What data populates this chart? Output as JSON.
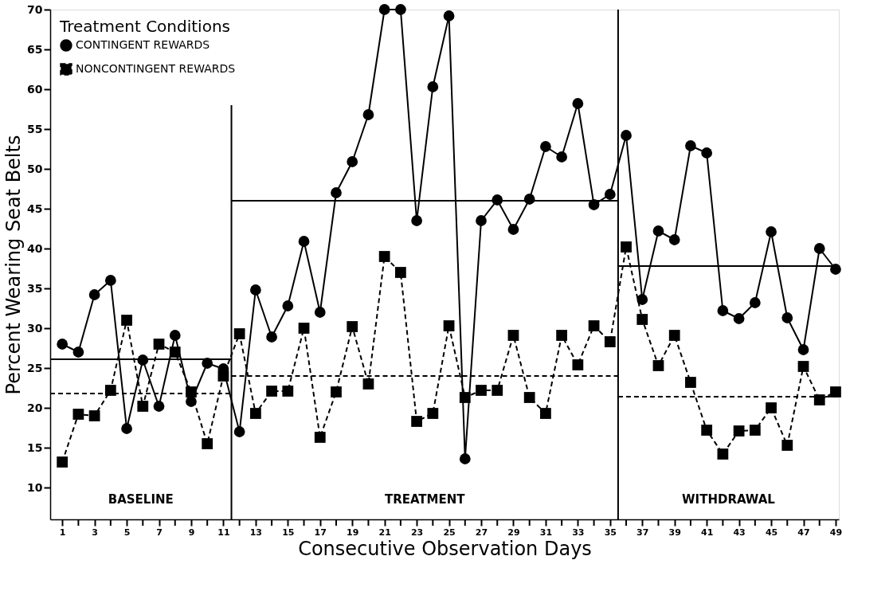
{
  "chart_data": {
    "type": "line",
    "xlabel": "Consecutive Observation Days",
    "ylabel": "Percent Wearing Seat Belts",
    "legend_title": "Treatment Conditions",
    "x": [
      1,
      2,
      3,
      4,
      5,
      6,
      7,
      8,
      9,
      10,
      11,
      12,
      13,
      14,
      15,
      16,
      17,
      18,
      19,
      20,
      21,
      22,
      23,
      24,
      25,
      26,
      27,
      28,
      29,
      30,
      31,
      32,
      33,
      34,
      35,
      36,
      37,
      38,
      39,
      40,
      41,
      42,
      43,
      44,
      45,
      46,
      47,
      48,
      49
    ],
    "series": [
      {
        "name": "CONTINGENT REWARDS",
        "color": "#000000",
        "marker": "circle",
        "line_style": "solid",
        "values": [
          28,
          27,
          34.2,
          36,
          17.4,
          26,
          20.2,
          29.1,
          20.8,
          25.6,
          24.9,
          17,
          34.8,
          28.9,
          32.8,
          40.9,
          32,
          47,
          50.9,
          56.8,
          70,
          70,
          43.5,
          60.3,
          69.2,
          13.6,
          43.5,
          46.1,
          42.4,
          46.2,
          52.8,
          51.5,
          58.2,
          45.5,
          46.8,
          54.2,
          33.6,
          42.2,
          41.1,
          52.9,
          52,
          32.2,
          31.2,
          33.2,
          42.1,
          31.3,
          27.3,
          40,
          37.4
        ]
      },
      {
        "name": "NONCONTINGENT REWARDS",
        "color": "#000000",
        "marker": "square",
        "line_style": "dashed",
        "values": [
          13.2,
          19.2,
          19,
          22.2,
          31,
          20.2,
          28,
          27,
          22,
          15.5,
          24,
          29.3,
          19.3,
          22.1,
          22.1,
          30,
          16.3,
          22,
          30.2,
          23,
          39,
          37,
          18.3,
          19.3,
          30.3,
          21.3,
          22.2,
          22.2,
          29.1,
          21.3,
          19.3,
          29.1,
          25.4,
          30.3,
          28.3,
          40.2,
          31.1,
          25.3,
          29.1,
          23.2,
          17.2,
          14.2,
          17.1,
          17.2,
          20,
          15.3,
          25.2,
          21,
          22
        ]
      },
      {
        "type": "line",
        "color": "#000000",
        "marker": "none",
        "line_style": "solid",
        "x": [
          0.25,
          11.5
        ],
        "values": [
          26.1,
          26.1
        ]
      },
      {
        "type": "line",
        "color": "#000000",
        "marker": "none",
        "line_style": "dashed",
        "x": [
          0.25,
          11.5
        ],
        "values": [
          21.8,
          21.8
        ]
      },
      {
        "type": "line",
        "color": "#000000",
        "marker": "none",
        "line_style": "solid",
        "x": [
          11.5,
          35.5
        ],
        "values": [
          46,
          46
        ]
      },
      {
        "type": "line",
        "color": "#000000",
        "marker": "none",
        "line_style": "dashed",
        "x": [
          11.5,
          35.5
        ],
        "values": [
          24,
          24
        ]
      },
      {
        "type": "line",
        "color": "#000000",
        "marker": "none",
        "line_style": "solid",
        "x": [
          35.5,
          49.2
        ],
        "values": [
          37.8,
          37.8
        ]
      },
      {
        "type": "line",
        "color": "#000000",
        "marker": "none",
        "line_style": "dashed",
        "x": [
          35.5,
          49.2
        ],
        "values": [
          21.4,
          21.4
        ]
      },
      {
        "type": "line",
        "color": "#000000",
        "marker": "none",
        "line_style": "solid",
        "x": [
          11.5,
          11.5
        ],
        "values": [
          6,
          58
        ]
      },
      {
        "type": "line",
        "color": "#000000",
        "marker": "none",
        "line_style": "solid",
        "x": [
          35.5,
          35.5
        ],
        "values": [
          6,
          70
        ]
      }
    ],
    "annotations": [
      "BASELINE",
      "TREATMENT",
      "WITHDRAWAL"
    ],
    "xlim": [
      0.25,
      49.2
    ],
    "xticks": [
      1,
      {
        "value": 2,
        "label": null
      },
      3,
      {
        "value": 4,
        "label": null
      },
      5,
      {
        "value": 6,
        "label": null
      },
      7,
      {
        "value": 8,
        "label": null
      },
      9,
      {
        "value": 10,
        "label": null
      },
      11,
      {
        "value": 12,
        "label": null
      },
      13,
      {
        "value": 14,
        "label": null
      },
      15,
      {
        "value": 16,
        "label": null
      },
      17,
      {
        "value": 18,
        "label": null
      },
      19,
      {
        "value": 20,
        "label": null
      },
      21,
      {
        "value": 22,
        "label": null
      },
      23,
      {
        "value": 24,
        "label": null
      },
      25,
      {
        "value": 26,
        "label": null
      },
      27,
      {
        "value": 28,
        "label": null
      },
      29,
      {
        "value": 30,
        "label": null
      },
      31,
      {
        "value": 32,
        "label": null
      },
      33,
      {
        "value": 34,
        "label": null
      },
      35,
      {
        "value": 36,
        "label": null
      },
      37,
      {
        "value": 38,
        "label": null
      },
      39,
      {
        "value": 40,
        "label": null
      },
      41,
      {
        "value": 42,
        "label": null
      },
      43,
      {
        "value": 44,
        "label": null
      },
      45,
      {
        "value": 46,
        "label": null
      },
      47,
      {
        "value": 48,
        "label": null
      },
      49
    ],
    "ylim": [
      6,
      70
    ],
    "yticks": [
      10,
      15,
      20,
      25,
      30,
      35,
      40,
      45,
      50,
      55,
      60,
      65,
      70
    ],
    "grid": false,
    "legend": "top left"
  }
}
